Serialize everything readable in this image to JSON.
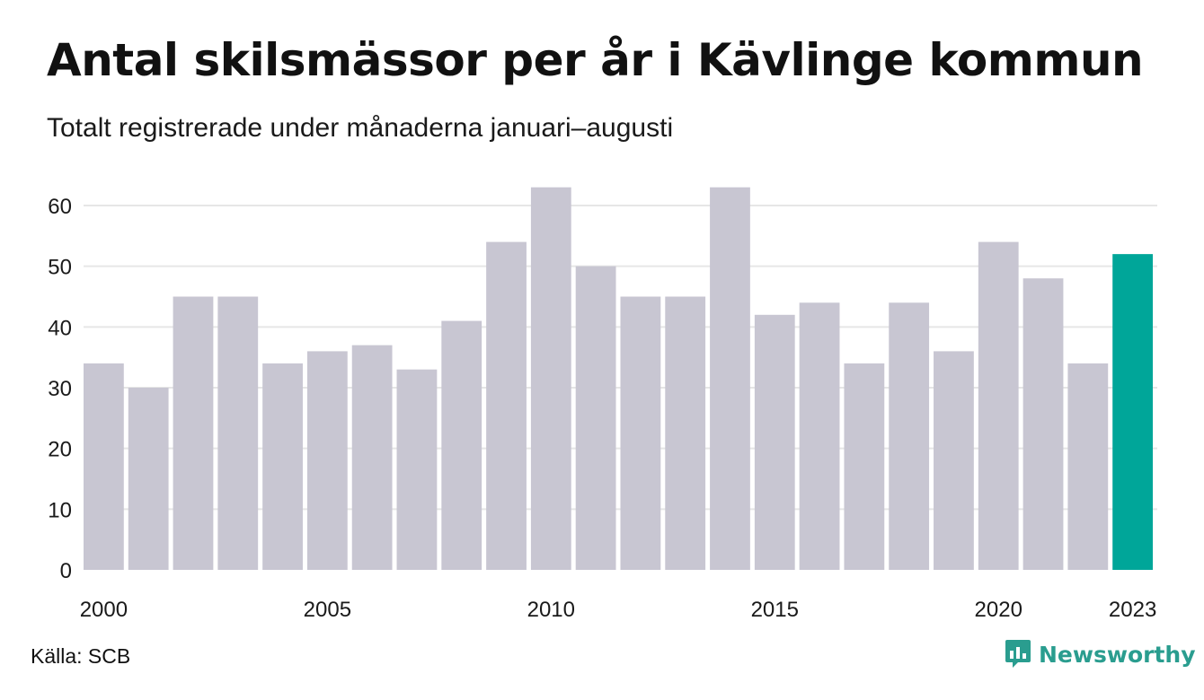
{
  "header": {
    "title": "Antal skilsmässor per år i Kävlinge kommun",
    "subtitle": "Totalt registrerade under månaderna januari–augusti"
  },
  "footer": {
    "source": "Källa: SCB",
    "brand": "Newsworthy"
  },
  "colors": {
    "bar": "#c8c6d2",
    "highlight": "#00a699",
    "grid": "#e6e6e6",
    "brand": "#2a9d8f"
  },
  "chart_data": {
    "type": "bar",
    "title": "Antal skilsmässor per år i Kävlinge kommun",
    "subtitle": "Totalt registrerade under månaderna januari–augusti",
    "categories": [
      2000,
      2001,
      2002,
      2003,
      2004,
      2005,
      2006,
      2007,
      2008,
      2009,
      2010,
      2011,
      2012,
      2013,
      2014,
      2015,
      2016,
      2017,
      2018,
      2019,
      2020,
      2021,
      2022,
      2023
    ],
    "values": [
      34,
      30,
      45,
      45,
      34,
      36,
      37,
      33,
      41,
      54,
      63,
      50,
      45,
      45,
      63,
      42,
      44,
      34,
      44,
      36,
      54,
      48,
      34,
      52
    ],
    "highlight": 2023,
    "x_tick_labels": [
      "2000",
      "2005",
      "2010",
      "2015",
      "2020",
      "2023"
    ],
    "y_ticks": [
      0,
      10,
      20,
      30,
      40,
      50,
      60
    ],
    "ylim": [
      0,
      65
    ],
    "xlabel": "",
    "ylabel": "",
    "grid": true,
    "legend": "none"
  }
}
